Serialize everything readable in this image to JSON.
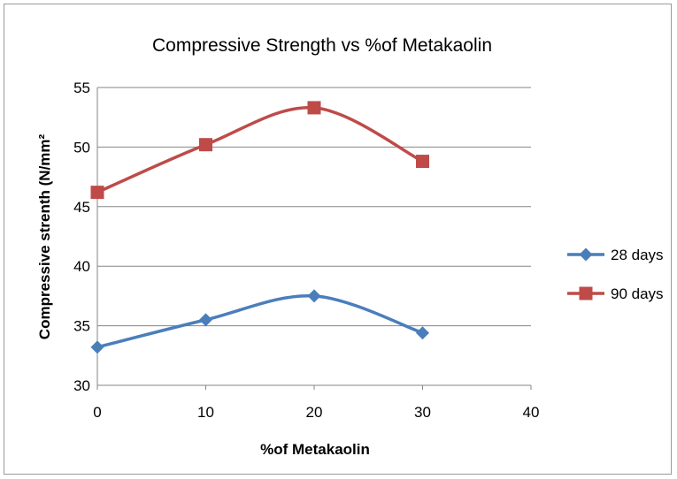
{
  "chart_data": {
    "type": "line",
    "title": "Compressive Strength vs %of Metakaolin",
    "xlabel": "%of Metakaolin",
    "ylabel": "Compressive strenth (N/mm²",
    "xlim": [
      0,
      40
    ],
    "ylim": [
      30,
      55
    ],
    "xticks": [
      "0",
      "10",
      "20",
      "30",
      "40"
    ],
    "yticks": [
      "30",
      "35",
      "40",
      "45",
      "50",
      "55"
    ],
    "grid": "horizontal",
    "legend_position": "right",
    "smooth": true,
    "series": [
      {
        "name": "28 days",
        "color": "#4a7ebb",
        "marker": "diamond",
        "x": [
          0,
          10,
          20,
          30
        ],
        "values": [
          33.2,
          35.5,
          37.5,
          34.4
        ]
      },
      {
        "name": "90 days",
        "color": "#be4b48",
        "marker": "square",
        "x": [
          0,
          10,
          20,
          30
        ],
        "values": [
          46.2,
          50.2,
          53.3,
          48.8
        ]
      }
    ]
  }
}
